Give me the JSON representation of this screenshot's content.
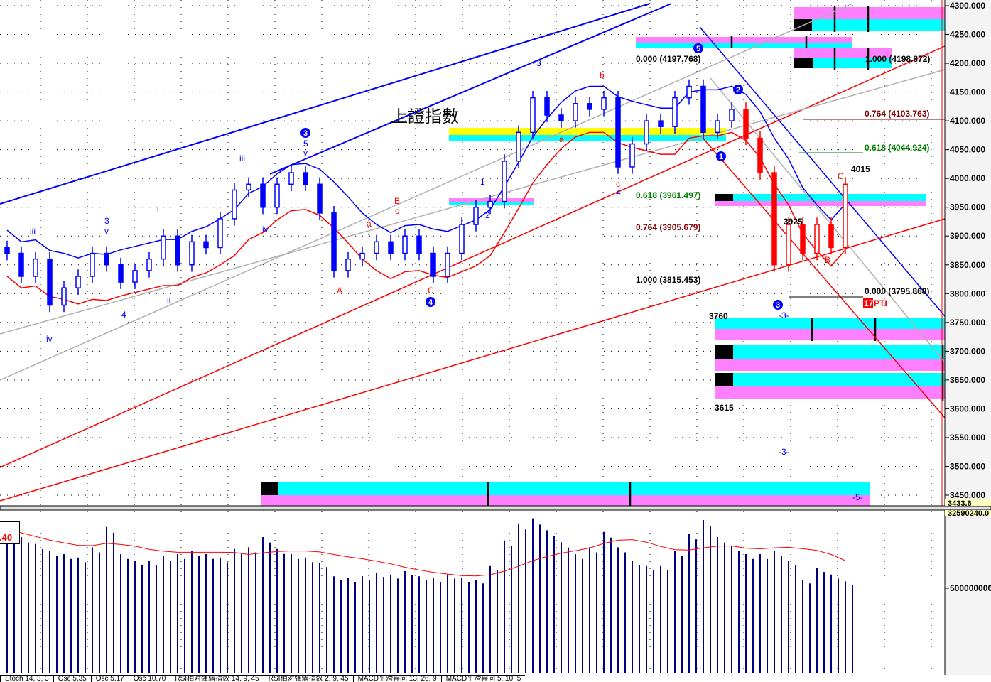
{
  "title": "上證指數",
  "axis": {
    "price_ticks": [
      4300,
      4250,
      4200,
      4150,
      4100,
      4050,
      4000,
      3950,
      3900,
      3850,
      3800,
      3750,
      3700,
      3650,
      3600,
      3550,
      3500,
      3450
    ],
    "price_fmt_decimals": 3,
    "bottom_price_readout": "3433.6",
    "volume_readout": "32590240.0",
    "volume_tick": "500000000"
  },
  "fib": {
    "f1": "0.000 (4197.768)",
    "f2": "1.000 (4198.872)",
    "f3": "0.764 (4103.763)",
    "f4": "0.618 (4044.924)",
    "f5": "0.618 (3961.497)",
    "f6": "0.764 (3905.679)",
    "f7": "1.000 (3815.453)",
    "f8": "0.000 (3795.868)",
    "pti_num": "17",
    "pti": "PTI"
  },
  "levels": {
    "l3760": "3760",
    "l3615": "3615",
    "l4015": "4015",
    "l3925": "3925"
  },
  "waves": [
    "iii",
    "3",
    "v",
    "4",
    "iv",
    "ii",
    "i",
    "iii",
    "iv",
    "5",
    "v",
    "1",
    "2",
    "3",
    "4",
    "-3-",
    "-3-",
    "-5-",
    "B",
    "c",
    "a",
    "A",
    "C",
    "b",
    "a",
    "c",
    "B",
    "C"
  ],
  "circles": [
    "3",
    "4",
    "5",
    "2",
    "1",
    "3"
  ],
  "volume_box": ".40",
  "tabs": [
    "Stoch 14, 3, 3",
    "Osc 5,35",
    "Osc 5,17",
    "Osc 10,70",
    "RSI相对强弱指数 14, 9, 45",
    "RSI相对强弱指数 2, 9, 45",
    "MACD平滑异同 13, 26, 9",
    "MACD平滑异同 5, 10, 5"
  ],
  "colors": {
    "up": "#0000ff",
    "down_late": "#ff0000",
    "cyan": "#00ffff",
    "magenta": "#ff80ff",
    "yellow": "#ffff00",
    "fib_red": "#800000",
    "fib_green": "#008000",
    "volume": "#000080"
  },
  "chart_data": {
    "type": "candlestick",
    "title": "上證指數",
    "ylim": [
      3450,
      4300
    ],
    "closes": [
      3870,
      3830,
      3860,
      3780,
      3810,
      3830,
      3870,
      3850,
      3820,
      3840,
      3860,
      3900,
      3850,
      3890,
      3880,
      3930,
      3980,
      3990,
      3950,
      3990,
      4010,
      3990,
      3940,
      3840,
      3860,
      3870,
      3890,
      3870,
      3900,
      3870,
      3830,
      3870,
      3920,
      3950,
      3960,
      4030,
      4080,
      4140,
      4110,
      4100,
      4130,
      4120,
      4140,
      4020,
      4060,
      4100,
      4090,
      4140,
      4160,
      4080,
      4100,
      4120,
      4070,
      4010,
      3850,
      3920,
      3870,
      3920,
      3880,
      3990
    ],
    "volume": [
      850000000.0,
      800000000.0,
      760000000.0,
      720000000.0,
      700000000.0,
      680000000.0,
      740000000.0,
      860000000.0,
      700000000.0,
      660000000.0,
      660000000.0,
      690000000.0,
      700000000.0,
      720000000.0,
      700000000.0,
      680000000.0,
      730000000.0,
      740000000.0,
      800000000.0,
      730000000.0,
      700000000.0,
      680000000.0,
      650000000.0,
      570000000.0,
      560000000.0,
      570000000.0,
      590000000.0,
      580000000.0,
      600000000.0,
      570000000.0,
      560000000.0,
      580000000.0,
      560000000.0,
      550000000.0,
      630000000.0,
      780000000.0,
      880000000.0,
      910000000.0,
      840000000.0,
      770000000.0,
      700000000.0,
      740000000.0,
      830000000.0,
      740000000.0,
      660000000.0,
      630000000.0,
      630000000.0,
      720000000.0,
      820000000.0,
      900000000.0,
      800000000.0,
      750000000.0,
      700000000.0,
      700000000.0,
      720000000.0,
      660000000.0,
      550000000.0,
      620000000.0,
      580000000.0,
      540000000.0
    ],
    "volume_ylim": [
      0,
      1000000000.0
    ]
  }
}
